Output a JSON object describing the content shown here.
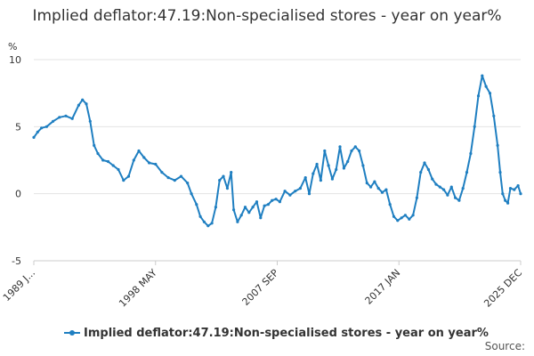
{
  "header": {
    "title": "Implied deflator:47.19:Non-specialised stores - year on year%"
  },
  "footer": {
    "source": "Source:"
  },
  "chart_data": {
    "type": "line",
    "title": "Implied deflator:47.19:Non-specialised stores - year on year%",
    "ylabel": "%",
    "xlabel": "",
    "ylim": [
      -5,
      10
    ],
    "yticks": [
      "-5",
      "0",
      "5",
      "10"
    ],
    "xticks": [
      "1989 J...",
      "1998 MAY",
      "2007 SEP",
      "2017 JAN",
      "2025 DEC"
    ],
    "grid": true,
    "legend": "bottom",
    "series": [
      {
        "name": "Implied deflator:47.19:Non-specialised stores - year on year%",
        "color": "#1f7fc1",
        "points": [
          [
            1989.0,
            4.2
          ],
          [
            1989.3,
            4.6
          ],
          [
            1989.6,
            4.9
          ],
          [
            1990.0,
            5.0
          ],
          [
            1990.5,
            5.4
          ],
          [
            1991.0,
            5.7
          ],
          [
            1991.5,
            5.8
          ],
          [
            1992.0,
            5.6
          ],
          [
            1992.5,
            6.6
          ],
          [
            1992.8,
            7.0
          ],
          [
            1993.1,
            6.7
          ],
          [
            1993.4,
            5.4
          ],
          [
            1993.7,
            3.6
          ],
          [
            1994.0,
            3.0
          ],
          [
            1994.4,
            2.5
          ],
          [
            1994.8,
            2.4
          ],
          [
            1995.2,
            2.1
          ],
          [
            1995.6,
            1.8
          ],
          [
            1996.0,
            1.0
          ],
          [
            1996.4,
            1.3
          ],
          [
            1996.8,
            2.5
          ],
          [
            1997.2,
            3.2
          ],
          [
            1997.6,
            2.7
          ],
          [
            1998.0,
            2.3
          ],
          [
            1998.5,
            2.2
          ],
          [
            1999.0,
            1.6
          ],
          [
            1999.5,
            1.2
          ],
          [
            2000.0,
            1.0
          ],
          [
            2000.5,
            1.3
          ],
          [
            2001.0,
            0.8
          ],
          [
            2001.3,
            0.0
          ],
          [
            2001.7,
            -0.8
          ],
          [
            2002.0,
            -1.7
          ],
          [
            2002.3,
            -2.1
          ],
          [
            2002.6,
            -2.4
          ],
          [
            2002.9,
            -2.2
          ],
          [
            2003.2,
            -1.0
          ],
          [
            2003.5,
            1.0
          ],
          [
            2003.8,
            1.3
          ],
          [
            2004.1,
            0.4
          ],
          [
            2004.4,
            1.6
          ],
          [
            2004.6,
            -1.2
          ],
          [
            2004.9,
            -2.1
          ],
          [
            2005.2,
            -1.6
          ],
          [
            2005.5,
            -1.0
          ],
          [
            2005.8,
            -1.4
          ],
          [
            2006.1,
            -1.0
          ],
          [
            2006.4,
            -0.6
          ],
          [
            2006.7,
            -1.8
          ],
          [
            2007.0,
            -0.9
          ],
          [
            2007.3,
            -0.8
          ],
          [
            2007.6,
            -0.5
          ],
          [
            2007.9,
            -0.4
          ],
          [
            2008.2,
            -0.6
          ],
          [
            2008.6,
            0.2
          ],
          [
            2009.0,
            -0.1
          ],
          [
            2009.4,
            0.2
          ],
          [
            2009.8,
            0.4
          ],
          [
            2010.2,
            1.2
          ],
          [
            2010.5,
            0.0
          ],
          [
            2010.8,
            1.5
          ],
          [
            2011.1,
            2.2
          ],
          [
            2011.4,
            1.0
          ],
          [
            2011.7,
            3.2
          ],
          [
            2012.0,
            2.1
          ],
          [
            2012.3,
            1.1
          ],
          [
            2012.6,
            1.8
          ],
          [
            2012.9,
            3.5
          ],
          [
            2013.2,
            1.9
          ],
          [
            2013.5,
            2.4
          ],
          [
            2013.8,
            3.2
          ],
          [
            2014.1,
            3.5
          ],
          [
            2014.4,
            3.2
          ],
          [
            2014.7,
            2.1
          ],
          [
            2015.0,
            0.8
          ],
          [
            2015.3,
            0.5
          ],
          [
            2015.6,
            0.9
          ],
          [
            2015.9,
            0.4
          ],
          [
            2016.2,
            0.1
          ],
          [
            2016.5,
            0.3
          ],
          [
            2016.8,
            -0.8
          ],
          [
            2017.1,
            -1.7
          ],
          [
            2017.4,
            -2.0
          ],
          [
            2017.7,
            -1.8
          ],
          [
            2018.0,
            -1.6
          ],
          [
            2018.3,
            -1.9
          ],
          [
            2018.6,
            -1.6
          ],
          [
            2018.9,
            -0.3
          ],
          [
            2019.2,
            1.6
          ],
          [
            2019.5,
            2.3
          ],
          [
            2019.8,
            1.8
          ],
          [
            2020.1,
            1.1
          ],
          [
            2020.4,
            0.7
          ],
          [
            2020.7,
            0.5
          ],
          [
            2021.0,
            0.3
          ],
          [
            2021.3,
            -0.1
          ],
          [
            2021.6,
            0.5
          ],
          [
            2021.9,
            -0.3
          ],
          [
            2022.2,
            -0.5
          ],
          [
            2022.5,
            0.4
          ],
          [
            2022.8,
            1.6
          ],
          [
            2023.1,
            3.0
          ],
          [
            2023.4,
            5.0
          ],
          [
            2023.7,
            7.3
          ],
          [
            2024.0,
            8.8
          ],
          [
            2024.3,
            8.0
          ],
          [
            2024.6,
            7.5
          ],
          [
            2024.9,
            5.8
          ],
          [
            2025.2,
            3.6
          ],
          [
            2025.4,
            1.6
          ],
          [
            2025.6,
            0.0
          ],
          [
            2025.8,
            -0.5
          ],
          [
            2026.0,
            -0.7
          ],
          [
            2026.2,
            0.4
          ],
          [
            2026.5,
            0.3
          ],
          [
            2026.8,
            0.6
          ],
          [
            2027.0,
            0.0
          ]
        ]
      }
    ]
  }
}
